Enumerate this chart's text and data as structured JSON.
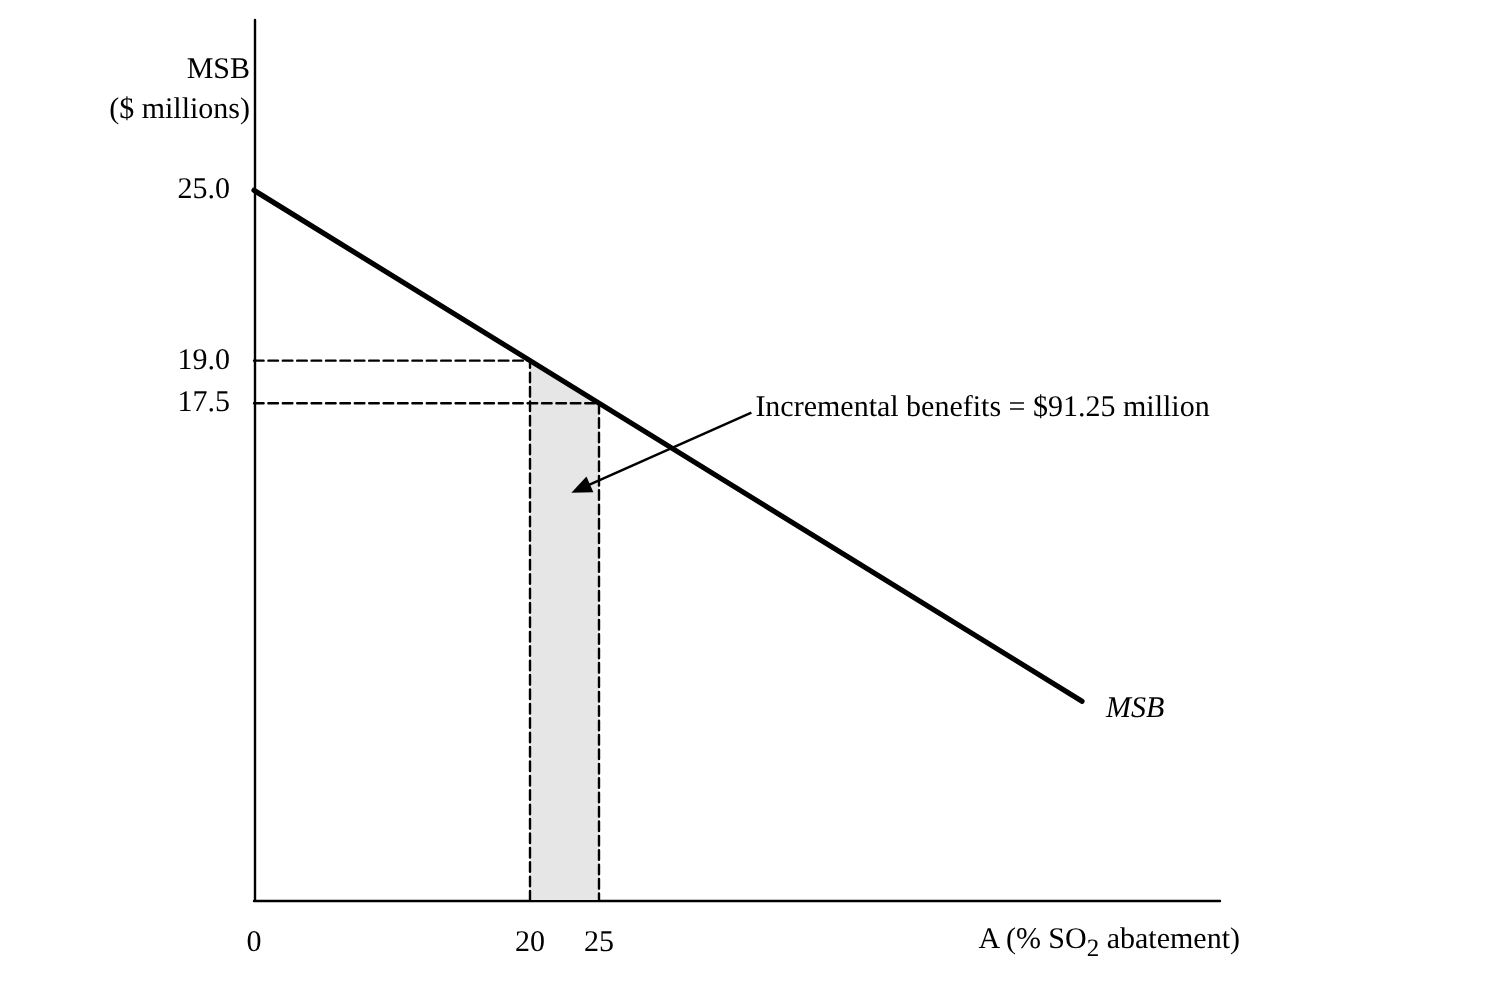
{
  "chart_data": {
    "type": "line",
    "xlabel": "A (% SO$_{2}$ abatement)",
    "ylabel": "MSB\n($ millions)",
    "xlim": [
      0,
      70
    ],
    "ylim": [
      0,
      31
    ],
    "xticks": [
      0,
      20,
      25
    ],
    "yticks": [
      17.5,
      {
        "value": 19,
        "label": "19.0"
      },
      {
        "value": 25,
        "label": "25.0"
      }
    ],
    "grid": false,
    "legend": false,
    "marker": "none",
    "series": [
      {
        "type": "area",
        "color": "#e6e6e6",
        "x": [
          20,
          25
        ],
        "values": [
          19,
          17.5
        ]
      },
      {
        "type": "line",
        "color": "#000000",
        "line_style": "dashed",
        "x": [
          0,
          20,
          20
        ],
        "values": [
          19,
          19,
          0
        ]
      },
      {
        "type": "line",
        "color": "#000000",
        "line_style": "dashed",
        "x": [
          0,
          25,
          25
        ],
        "values": [
          17.5,
          17.5,
          0
        ]
      },
      {
        "name": "MSB",
        "type": "line",
        "color": "#000000",
        "line_style": "solid",
        "x": [
          0,
          60
        ],
        "values": [
          25,
          7
        ]
      }
    ],
    "annotations": [
      "Incremental benefits = $91.25 million"
    ]
  }
}
